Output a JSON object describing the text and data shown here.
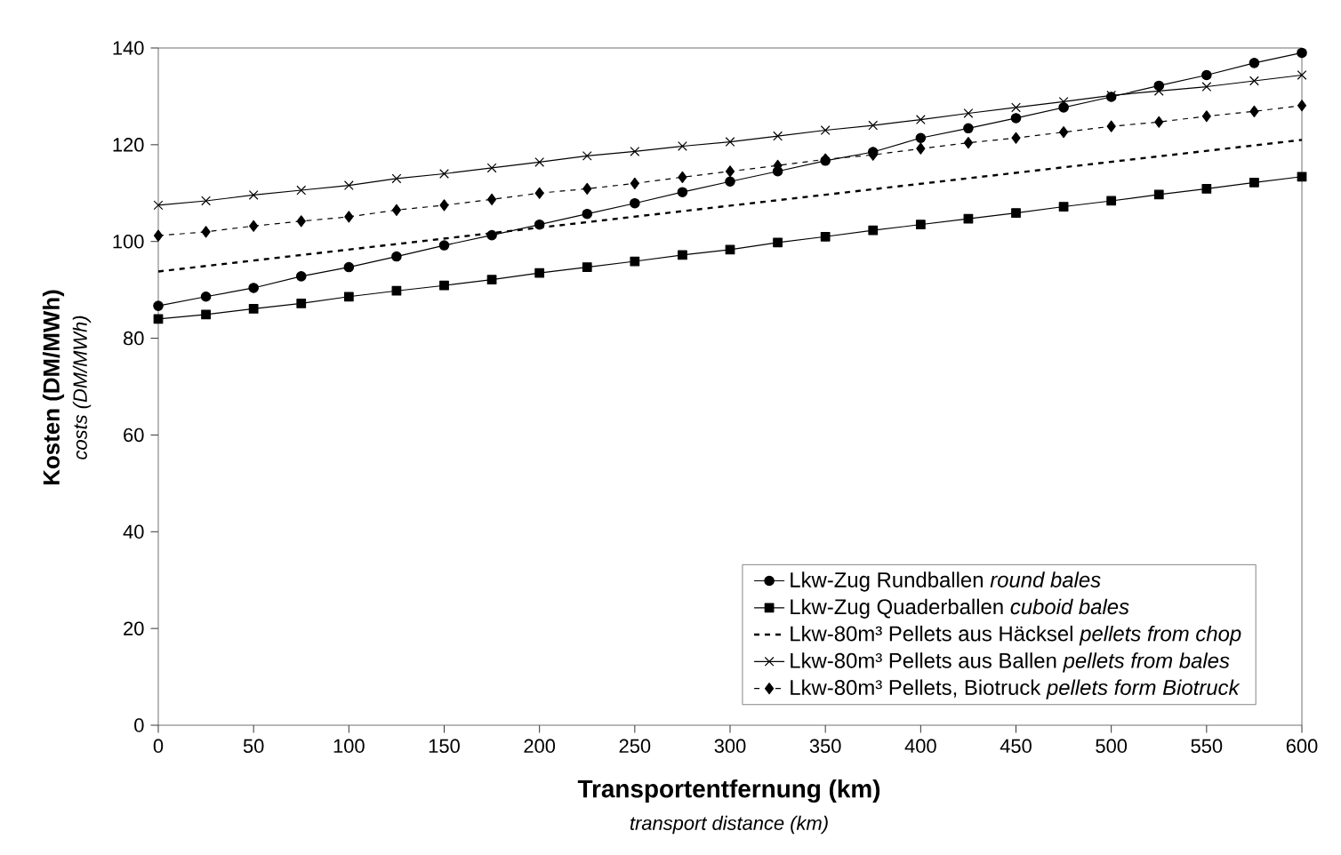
{
  "chart_data": {
    "type": "line",
    "xlabel": "Transportentfernung (km)",
    "ylabel": "Kosten (DM/MWh)",
    "annotations": [
      "costs (DM/MWh)",
      "transport distance (km)"
    ],
    "x": [
      0,
      25,
      50,
      75,
      100,
      125,
      150,
      175,
      200,
      225,
      250,
      275,
      300,
      325,
      350,
      375,
      400,
      425,
      450,
      475,
      500,
      525,
      550,
      575,
      600
    ],
    "xlim": [
      0,
      600
    ],
    "xticks": [
      0,
      50,
      100,
      150,
      200,
      250,
      300,
      350,
      400,
      450,
      500,
      550,
      600
    ],
    "ylim": [
      0,
      140
    ],
    "yticks": [
      0,
      20,
      40,
      60,
      80,
      100,
      120,
      140
    ],
    "legend": "bottom right",
    "series": [
      {
        "name": "Lkw-Zug Rundballen   *round bales*",
        "color": "#000000",
        "marker": "circle",
        "line_style": "solid",
        "values": [
          86.7,
          88.6,
          90.4,
          92.8,
          94.7,
          96.9,
          99.2,
          101.3,
          103.5,
          105.7,
          107.9,
          110.2,
          112.4,
          114.5,
          116.7,
          118.5,
          121.4,
          123.4,
          125.5,
          127.7,
          129.9,
          132.2,
          134.4,
          136.9,
          139.0
        ]
      },
      {
        "name": "Lkw-Zug Quaderballen   *cuboid bales*",
        "color": "#000000",
        "marker": "square",
        "line_style": "solid",
        "values": [
          84.0,
          84.9,
          86.1,
          87.2,
          88.6,
          89.8,
          90.9,
          92.1,
          93.5,
          94.7,
          95.9,
          97.2,
          98.3,
          99.8,
          101.0,
          102.3,
          103.5,
          104.7,
          105.9,
          107.2,
          108.4,
          109.7,
          110.9,
          112.2,
          113.4
        ]
      },
      {
        "name": "Lkw-80m³ Pellets aus Häcksel   *pellets from chop*",
        "color": "#000000",
        "marker": "none",
        "line_style": "dashed",
        "x": [
          0,
          600
        ],
        "values": [
          93.8,
          121.0
        ]
      },
      {
        "name": "Lkw-80m³ Pellets aus Ballen *pellets from bales*",
        "color": "#000000",
        "marker": "cross",
        "line_style": "solid",
        "values": [
          107.5,
          108.4,
          109.6,
          110.6,
          111.6,
          113.0,
          114.0,
          115.2,
          116.4,
          117.7,
          118.6,
          119.7,
          120.6,
          121.8,
          123.0,
          124.0,
          125.2,
          126.5,
          127.7,
          128.9,
          130.2,
          131.1,
          132.0,
          133.2,
          134.4
        ]
      },
      {
        "name": "Lkw-80m³ Pellets, Biotruck   *pellets form Biotruck*",
        "color": "#000000",
        "marker": "diamond",
        "line_style": "dashed",
        "values": [
          101.2,
          102.0,
          103.2,
          104.2,
          105.1,
          106.5,
          107.5,
          108.7,
          110.0,
          110.9,
          112.0,
          113.3,
          114.5,
          115.7,
          117.0,
          117.9,
          119.2,
          120.4,
          121.4,
          122.6,
          123.8,
          124.7,
          125.9,
          126.9,
          128.1
        ]
      }
    ]
  }
}
